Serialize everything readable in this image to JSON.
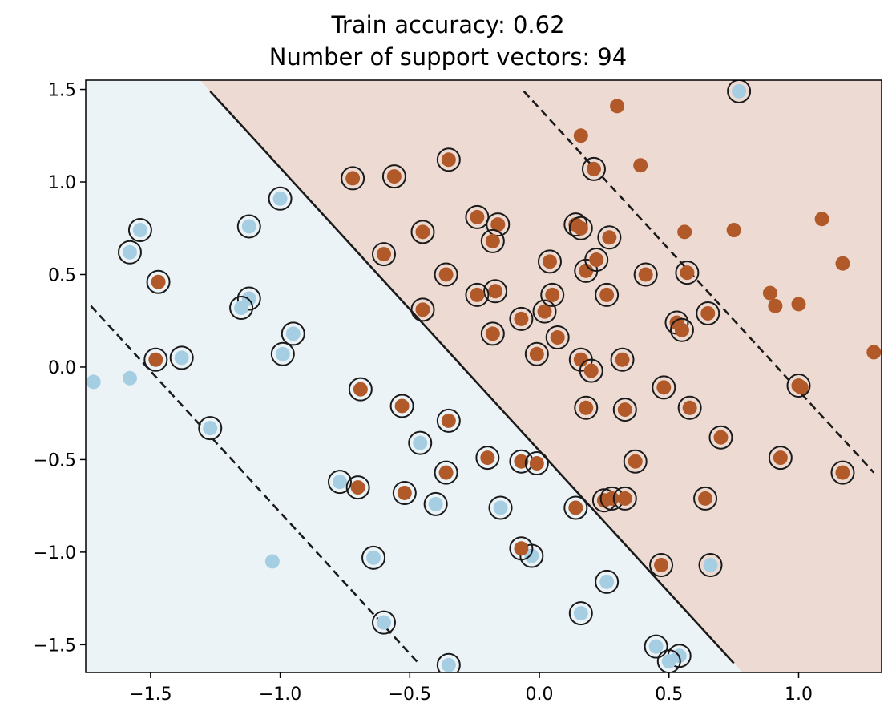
{
  "chart_data": {
    "type": "scatter",
    "title": "Train accuracy: 0.62",
    "subtitle": "Number of support vectors: 94",
    "xlabel": "",
    "ylabel": "",
    "xlim": [
      -1.75,
      1.32
    ],
    "ylim": [
      -1.65,
      1.55
    ],
    "x_ticks": [
      -1.5,
      -1.0,
      -0.5,
      0.0,
      0.5,
      1.0
    ],
    "x_tick_labels": [
      "−1.5",
      "−1.0",
      "−0.5",
      "0.0",
      "0.5",
      "1.0"
    ],
    "y_ticks": [
      -1.5,
      -1.0,
      -0.5,
      0.0,
      0.5,
      1.0,
      1.5
    ],
    "y_tick_labels": [
      "−1.5",
      "−1.0",
      "−0.5",
      "0.0",
      "0.5",
      "1.0",
      "1.5"
    ],
    "grid": false,
    "colors": {
      "class_0": "#a6cee3",
      "class_1": "#b15928",
      "class_0_region": "#ecf3f7",
      "class_1_region": "#eddbd3",
      "boundary": "#1a1a1a",
      "support_vector_ring": "#1a1a1a"
    },
    "decision_boundary": [
      [
        -1.27,
        1.49
      ],
      [
        0.75,
        -1.6
      ]
    ],
    "margins": [
      [
        [
          -1.73,
          0.33
        ],
        [
          -0.46,
          -1.61
        ]
      ],
      [
        [
          -0.06,
          1.49
        ],
        [
          1.29,
          -0.57
        ]
      ]
    ],
    "series": [
      {
        "class": 0,
        "points": [
          [
            -1.58,
            0.62
          ],
          [
            -1.54,
            0.74
          ],
          [
            -1.72,
            -0.08
          ],
          [
            -1.58,
            -0.06
          ],
          [
            -1.38,
            0.05
          ],
          [
            -1.27,
            -0.33
          ],
          [
            -1.12,
            0.76
          ],
          [
            -1.12,
            0.37
          ],
          [
            -1.15,
            0.32
          ],
          [
            -1.0,
            0.91
          ],
          [
            -0.99,
            0.07
          ],
          [
            -0.95,
            0.18
          ],
          [
            -1.03,
            -1.05
          ],
          [
            -0.77,
            -0.62
          ],
          [
            -0.64,
            -1.03
          ],
          [
            -0.6,
            -1.38
          ],
          [
            -0.46,
            -0.41
          ],
          [
            -0.4,
            -0.74
          ],
          [
            -0.35,
            -1.61
          ],
          [
            -0.15,
            -0.76
          ],
          [
            -0.03,
            -1.02
          ],
          [
            0.16,
            -1.33
          ],
          [
            0.26,
            -1.16
          ],
          [
            0.45,
            -1.51
          ],
          [
            0.54,
            -1.56
          ],
          [
            0.77,
            1.49
          ],
          [
            0.66,
            -1.07
          ],
          [
            0.5,
            -1.59
          ]
        ]
      },
      {
        "class": 1,
        "points": [
          [
            -1.47,
            0.46
          ],
          [
            -1.48,
            0.04
          ],
          [
            -0.69,
            -0.12
          ],
          [
            -0.7,
            -0.65
          ],
          [
            -0.53,
            -0.21
          ],
          [
            -0.52,
            -0.68
          ],
          [
            -0.35,
            -0.29
          ],
          [
            -0.36,
            -0.57
          ],
          [
            -0.2,
            -0.49
          ],
          [
            -0.07,
            -0.51
          ],
          [
            -0.07,
            -0.98
          ],
          [
            -0.01,
            -0.52
          ],
          [
            0.14,
            -0.76
          ],
          [
            0.25,
            -0.72
          ],
          [
            0.28,
            -0.71
          ],
          [
            0.33,
            -0.71
          ],
          [
            0.37,
            -0.51
          ],
          [
            0.47,
            -1.07
          ],
          [
            0.64,
            -0.71
          ],
          [
            0.58,
            -0.22
          ],
          [
            0.48,
            -0.11
          ],
          [
            0.33,
            -0.23
          ],
          [
            0.32,
            0.04
          ],
          [
            0.18,
            -0.22
          ],
          [
            0.16,
            0.04
          ],
          [
            -0.01,
            0.07
          ],
          [
            0.07,
            0.16
          ],
          [
            -0.07,
            0.26
          ],
          [
            0.02,
            0.3
          ],
          [
            0.05,
            0.39
          ],
          [
            0.18,
            0.52
          ],
          [
            0.22,
            0.58
          ],
          [
            0.26,
            0.39
          ],
          [
            0.41,
            0.5
          ],
          [
            0.57,
            0.51
          ],
          [
            0.65,
            0.29
          ],
          [
            0.53,
            0.24
          ],
          [
            0.55,
            0.2
          ],
          [
            0.04,
            0.57
          ],
          [
            -0.17,
            0.41
          ],
          [
            -0.24,
            0.39
          ],
          [
            -0.18,
            0.18
          ],
          [
            -0.16,
            0.77
          ],
          [
            -0.24,
            0.81
          ],
          [
            -0.18,
            0.68
          ],
          [
            0.14,
            0.77
          ],
          [
            0.16,
            0.75
          ],
          [
            0.27,
            0.7
          ],
          [
            0.21,
            1.07
          ],
          [
            0.16,
            1.25
          ],
          [
            0.3,
            1.41
          ],
          [
            0.39,
            1.09
          ],
          [
            0.56,
            0.73
          ],
          [
            -0.35,
            1.12
          ],
          [
            -0.56,
            1.03
          ],
          [
            -0.72,
            1.02
          ],
          [
            -0.45,
            0.73
          ],
          [
            -0.6,
            0.61
          ],
          [
            -0.36,
            0.5
          ],
          [
            -0.45,
            0.31
          ],
          [
            0.2,
            -0.02
          ],
          [
            0.75,
            0.74
          ],
          [
            0.89,
            0.4
          ],
          [
            0.91,
            0.33
          ],
          [
            1.0,
            0.34
          ],
          [
            1.01,
            -0.11
          ],
          [
            1.0,
            -0.1
          ],
          [
            0.93,
            -0.49
          ],
          [
            0.7,
            -0.38
          ],
          [
            1.09,
            0.8
          ],
          [
            1.17,
            0.56
          ],
          [
            1.29,
            0.08
          ],
          [
            1.17,
            -0.57
          ]
        ]
      }
    ]
  }
}
